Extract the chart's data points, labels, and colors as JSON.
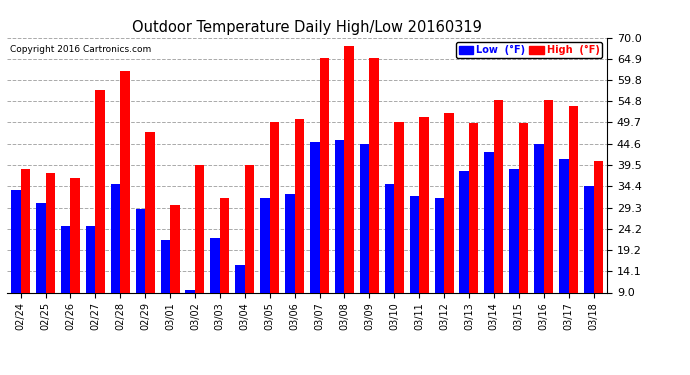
{
  "title": "Outdoor Temperature Daily High/Low 20160319",
  "copyright": "Copyright 2016 Cartronics.com",
  "legend_low_label": "Low  (°F)",
  "legend_high_label": "High  (°F)",
  "dates": [
    "02/24",
    "02/25",
    "02/26",
    "02/27",
    "02/28",
    "02/29",
    "03/01",
    "03/02",
    "03/03",
    "03/04",
    "03/05",
    "03/06",
    "03/07",
    "03/08",
    "03/09",
    "03/10",
    "03/11",
    "03/12",
    "03/13",
    "03/14",
    "03/15",
    "03/16",
    "03/17",
    "03/18"
  ],
  "low": [
    33.5,
    30.5,
    25.0,
    25.0,
    35.0,
    29.0,
    21.5,
    9.5,
    22.0,
    15.5,
    31.5,
    32.5,
    45.0,
    45.5,
    44.5,
    35.0,
    32.0,
    31.5,
    38.0,
    42.5,
    38.5,
    44.5,
    41.0,
    34.5
  ],
  "high": [
    38.5,
    37.5,
    36.5,
    57.5,
    62.0,
    47.5,
    30.0,
    39.5,
    31.5,
    39.5,
    49.7,
    50.5,
    65.0,
    68.0,
    65.0,
    49.7,
    51.0,
    52.0,
    49.5,
    55.0,
    49.5,
    55.0,
    53.5,
    40.5
  ],
  "low_color": "#0000ff",
  "high_color": "#ff0000",
  "bg_color": "#ffffff",
  "grid_color": "#aaaaaa",
  "title_color": "#000000",
  "copyright_color": "#000000",
  "ymin": 9.0,
  "ymax": 70.0,
  "yticks": [
    9.0,
    14.1,
    19.2,
    24.2,
    29.3,
    34.4,
    39.5,
    44.6,
    49.7,
    54.8,
    59.8,
    64.9,
    70.0
  ]
}
